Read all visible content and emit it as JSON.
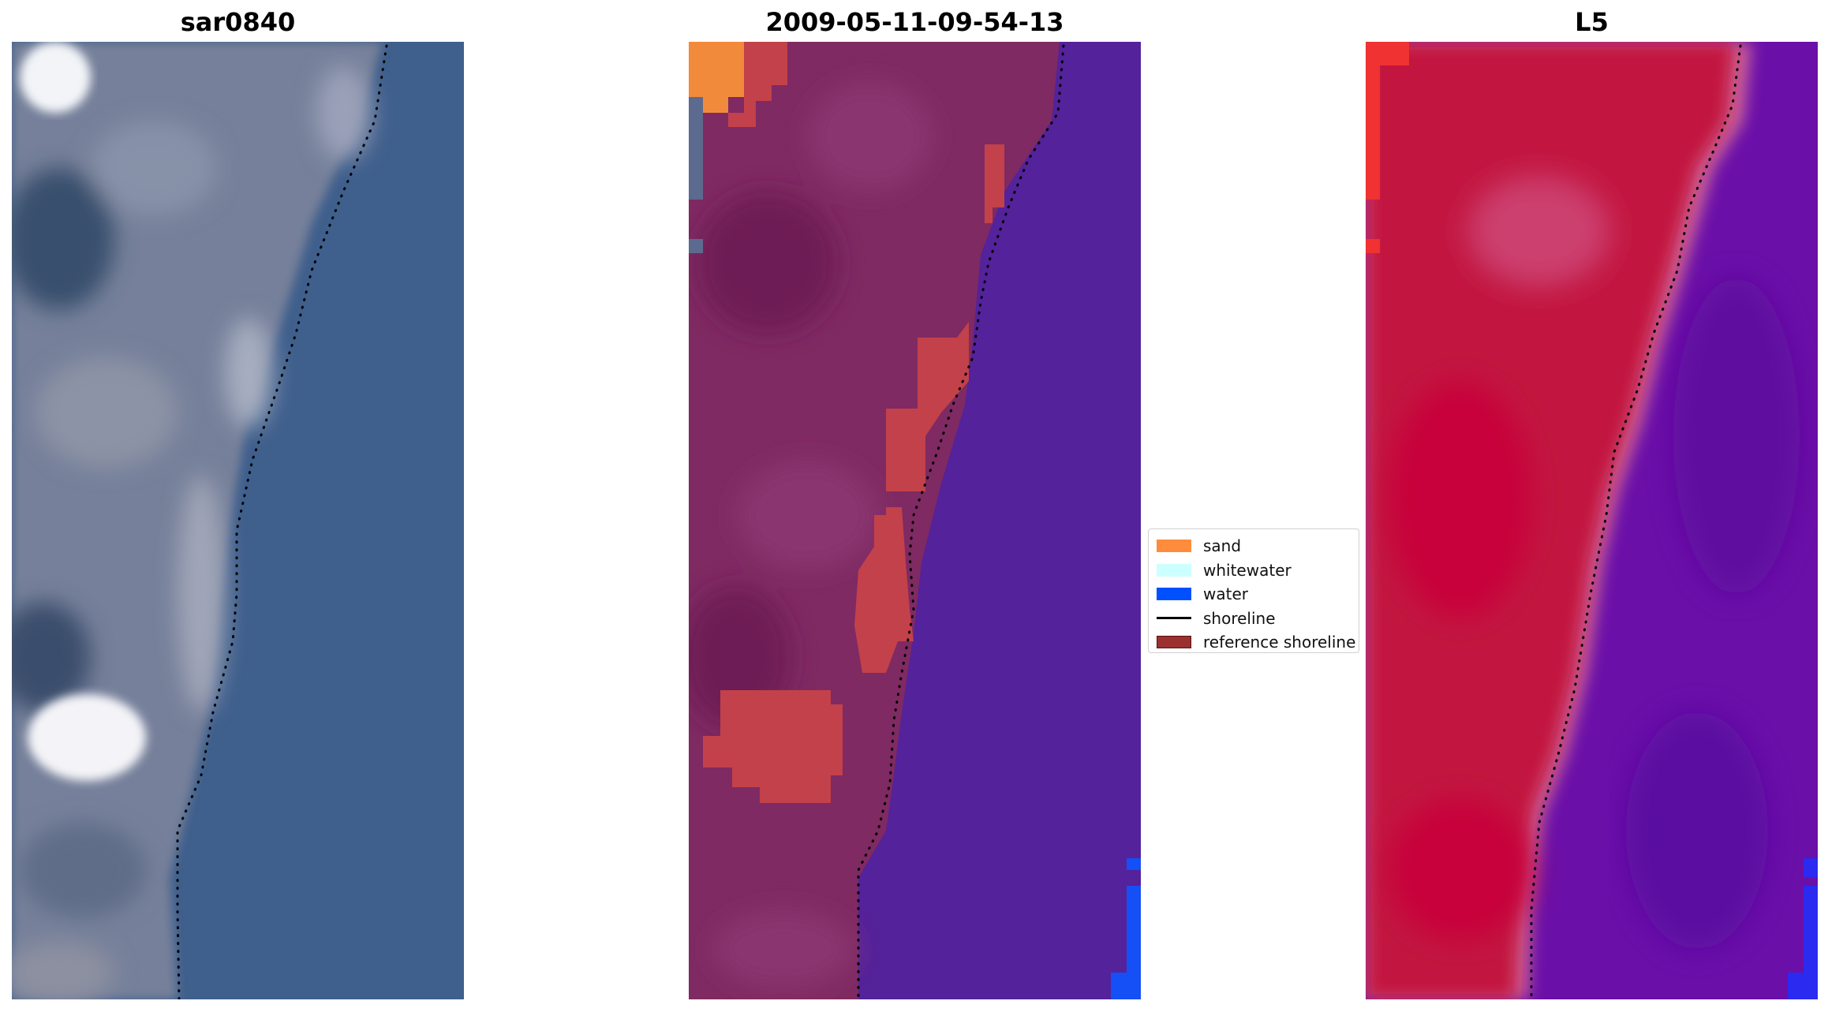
{
  "panels": [
    {
      "id": "rgb",
      "title": "sar0840"
    },
    {
      "id": "classified",
      "title": "2009-05-11-09-54-13"
    },
    {
      "id": "index",
      "title": "L5"
    }
  ],
  "legend": {
    "items": [
      {
        "label": "sand",
        "kind": "patch",
        "color": "#FF8C3C"
      },
      {
        "label": "whitewater",
        "kind": "patch",
        "color": "#CCFFFF"
      },
      {
        "label": "water",
        "kind": "patch",
        "color": "#0050FF"
      },
      {
        "label": "shoreline",
        "kind": "line",
        "color": "#000000"
      },
      {
        "label": "reference shoreline",
        "kind": "patch",
        "color": "#9B3030"
      }
    ]
  },
  "colors": {
    "rgb_land": "#7A8499",
    "rgb_water": "#3F5F8C",
    "class_land": "#7F2A62",
    "class_water": "#54229A",
    "class_sand": "#F28A3C",
    "class_shoreline_band": "#C3414A",
    "class_water_edge": "#1450F5",
    "index_land": "#C2183F",
    "index_water": "#6A0FA8",
    "index_edge": "#D36C9C",
    "index_bright": "#F03232",
    "shoreline_dots": "#000000"
  }
}
